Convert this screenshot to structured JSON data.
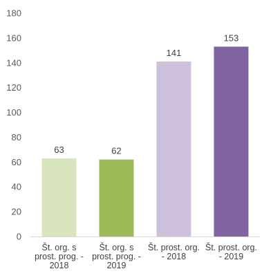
{
  "chart_data": {
    "type": "bar",
    "title": "",
    "xlabel": "",
    "ylabel": "",
    "ylim": [
      0,
      180
    ],
    "yticks": [
      0,
      20,
      40,
      60,
      80,
      100,
      120,
      140,
      160,
      180
    ],
    "grid": false,
    "legend": "none",
    "categories": [
      [
        "Št. org. s",
        "prost. prog. -",
        "2018"
      ],
      [
        "Št. org. s",
        "prost. prog. -",
        "2019"
      ],
      [
        "Št. prost. org.",
        "- 2018"
      ],
      [
        "Št. prost. org.",
        "- 2019"
      ]
    ],
    "values": [
      63,
      62,
      141,
      153
    ],
    "colors": [
      "#d9e5bf",
      "#9bbb59",
      "#ccc0da",
      "#8064a2"
    ]
  }
}
